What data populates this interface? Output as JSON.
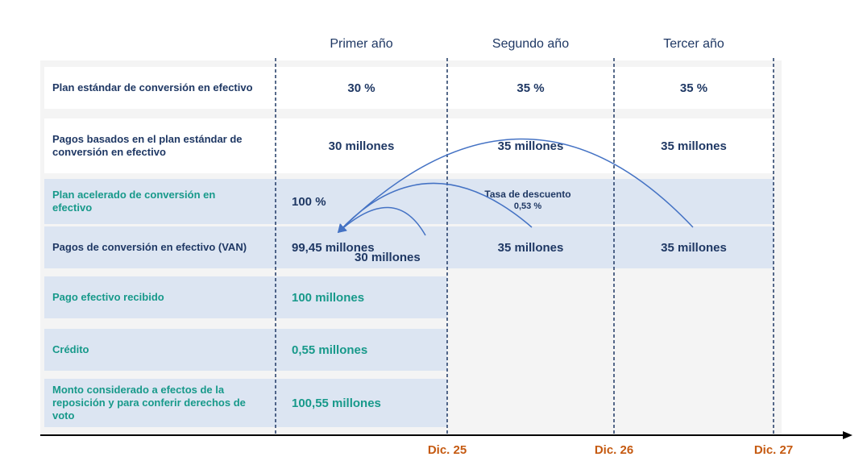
{
  "headers": [
    "Primer año",
    "Segundo año",
    "Tercer año"
  ],
  "rows": [
    {
      "label": "Plan estándar de conversión en efectivo",
      "values": [
        "30 %",
        "35 %",
        "35 %"
      ]
    },
    {
      "label": "Pagos basados en el plan estándar de conversión en efectivo",
      "values": [
        "30 millones",
        "35 millones",
        "35 millones"
      ]
    },
    {
      "label": "Plan acelerado de conversión en efectivo",
      "values": [
        "100 %"
      ]
    },
    {
      "label": "Pagos de conversión en efectivo (VAN)",
      "values": [
        "99,45 millones",
        "35 millones",
        "35 millones"
      ],
      "note": "30 millones"
    },
    {
      "label": "Pago efectivo recibido",
      "values": [
        "100 millones"
      ]
    },
    {
      "label": "Crédito",
      "values": [
        "0,55 millones"
      ]
    },
    {
      "label": "Monto considerado a efectos de la reposición y para conferir derechos de voto",
      "values": [
        "100,55 millones"
      ]
    }
  ],
  "discount": {
    "label": "Tasa de descuento",
    "value": "0,53 %"
  },
  "timeline": [
    "Dic. 25",
    "Dic. 26",
    "Dic. 27"
  ]
}
